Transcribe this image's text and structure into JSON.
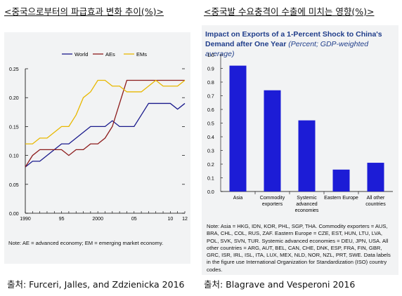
{
  "left": {
    "heading": "<중국으로부터의 파급효과 변화 추이(%)>",
    "note": "Note: AE = advanced economy; EM = emerging market economy.",
    "source": "출처: Furceri, Jalles, and Zdzienicka 2016"
  },
  "right": {
    "heading": "<중국발 수요충격이 수출에 미치는 영향(%)>",
    "title": "Impact on Exports of a 1-Percent Shock to China's Demand after One Year",
    "subtitle": "(Percent; GDP-weighted average)",
    "note": "Note: Asia = HKG, IDN, KOR, PHL, SGP, THA. Commodity exporters = AUS, BRA, CHL, COL, RUS, ZAF. Eastern Europe = CZE, EST, HUN, LTU, LVA, POL, SVK, SVN, TUR. Systemic advanced economies = DEU, JPN, USA. All other countries = ARG, AUT, BEL, CAN, CHE, DNK, ESP, FRA, FIN, GBR, GRC, ISR, IRL, ISL, ITA, LUX, MEX, NLD, NOR, NZL, PRT, SWE. Data labels in the figure use International Organization for Standardization (ISO) country codes.",
    "source": "출처: Blagrave and Vesperoni 2016"
  },
  "chart_data": [
    {
      "type": "line",
      "x": [
        1990,
        1991,
        1992,
        1993,
        1994,
        1995,
        1996,
        1997,
        1998,
        1999,
        2000,
        2001,
        2002,
        2003,
        2004,
        2005,
        2006,
        2007,
        2008,
        2009,
        2010,
        2011,
        2012
      ],
      "x_tick_labels": [
        "1990",
        "95",
        "2000",
        "05",
        "10",
        "12"
      ],
      "x_tick_values": [
        1990,
        1995,
        2000,
        2005,
        2010,
        2012
      ],
      "ylim": [
        0,
        0.25
      ],
      "y_ticks": [
        "0.00",
        "0.05",
        "0.10",
        "0.15",
        "0.20",
        "0.25"
      ],
      "grid": false,
      "legend_position": "top-center",
      "series": [
        {
          "name": "World",
          "color": "#1a1a8c",
          "values": [
            0.08,
            0.09,
            0.09,
            0.1,
            0.11,
            0.12,
            0.12,
            0.13,
            0.14,
            0.15,
            0.15,
            0.15,
            0.16,
            0.15,
            0.15,
            0.15,
            0.17,
            0.19,
            0.19,
            0.19,
            0.19,
            0.18,
            0.19
          ]
        },
        {
          "name": "AEs",
          "color": "#8c1a1a",
          "values": [
            0.08,
            0.1,
            0.11,
            0.11,
            0.11,
            0.11,
            0.1,
            0.11,
            0.11,
            0.12,
            0.12,
            0.13,
            0.15,
            0.19,
            0.23,
            0.23,
            0.23,
            0.23,
            0.23,
            0.23,
            0.23,
            0.23,
            0.23
          ]
        },
        {
          "name": "EMs",
          "color": "#e8b800",
          "values": [
            0.12,
            0.12,
            0.13,
            0.13,
            0.14,
            0.15,
            0.15,
            0.17,
            0.2,
            0.21,
            0.23,
            0.23,
            0.22,
            0.22,
            0.21,
            0.21,
            0.21,
            0.22,
            0.23,
            0.22,
            0.22,
            0.22,
            0.23
          ]
        }
      ]
    },
    {
      "type": "bar",
      "title": "Impact on Exports of a 1-Percent Shock to China's Demand after One Year",
      "subtitle": "(Percent; GDP-weighted average)",
      "categories": [
        [
          "Asia"
        ],
        [
          "Commodity",
          "exporters"
        ],
        [
          "Systemic",
          "advanced",
          "economies"
        ],
        [
          "Eastern Europe"
        ],
        [
          "All other",
          "countries"
        ]
      ],
      "values": [
        0.92,
        0.74,
        0.52,
        0.16,
        0.21
      ],
      "ylim": [
        0,
        1.0
      ],
      "y_ticks": [
        "0.0",
        "0.1",
        "0.2",
        "0.3",
        "0.4",
        "0.5",
        "0.6",
        "0.7",
        "0.8",
        "0.9",
        "1.0"
      ],
      "grid": false,
      "bar_color": "#1c1cd6"
    }
  ]
}
